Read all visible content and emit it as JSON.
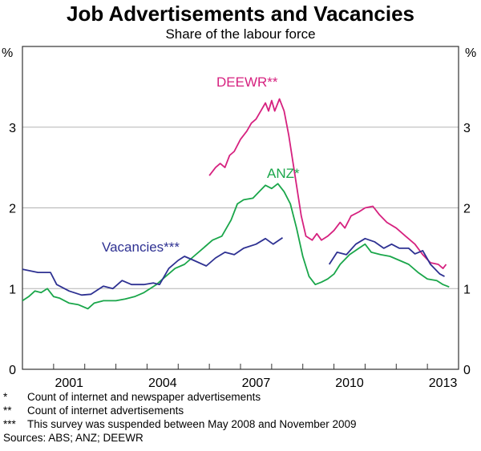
{
  "header": {
    "title": "Job Advertisements and Vacancies",
    "subtitle": "Share of the labour force"
  },
  "chart_data": {
    "type": "line",
    "title": "Job Advertisements and Vacancies",
    "subtitle": "Share of the labour force",
    "ylabel_left": "%",
    "ylabel_right": "%",
    "ylim": [
      0,
      4
    ],
    "xlim": [
      2000,
      2014
    ],
    "yticks": [
      0,
      1,
      2,
      3
    ],
    "xticks": [
      "2001",
      "2004",
      "2007",
      "2010",
      "2013"
    ],
    "grid": true,
    "series": [
      {
        "name": "DEEWR**",
        "color": "#d6217f",
        "segments": [
          [
            [
              2006.0,
              2.4
            ],
            [
              2006.2,
              2.5
            ],
            [
              2006.35,
              2.55
            ],
            [
              2006.5,
              2.5
            ],
            [
              2006.65,
              2.65
            ],
            [
              2006.8,
              2.7
            ],
            [
              2007.0,
              2.85
            ],
            [
              2007.2,
              2.95
            ],
            [
              2007.35,
              3.05
            ],
            [
              2007.5,
              3.1
            ],
            [
              2007.65,
              3.2
            ],
            [
              2007.8,
              3.3
            ],
            [
              2007.9,
              3.2
            ],
            [
              2008.0,
              3.33
            ],
            [
              2008.1,
              3.2
            ],
            [
              2008.25,
              3.35
            ],
            [
              2008.4,
              3.2
            ],
            [
              2008.55,
              2.9
            ],
            [
              2008.75,
              2.4
            ],
            [
              2008.95,
              1.9
            ],
            [
              2009.1,
              1.65
            ],
            [
              2009.3,
              1.6
            ],
            [
              2009.45,
              1.68
            ],
            [
              2009.6,
              1.6
            ],
            [
              2009.8,
              1.65
            ],
            [
              2010.0,
              1.72
            ],
            [
              2010.2,
              1.82
            ],
            [
              2010.35,
              1.75
            ],
            [
              2010.55,
              1.9
            ],
            [
              2010.8,
              1.95
            ],
            [
              2011.0,
              2.0
            ],
            [
              2011.25,
              2.02
            ],
            [
              2011.45,
              1.92
            ],
            [
              2011.7,
              1.82
            ],
            [
              2012.0,
              1.75
            ],
            [
              2012.3,
              1.65
            ],
            [
              2012.6,
              1.55
            ],
            [
              2012.85,
              1.42
            ],
            [
              2013.1,
              1.32
            ],
            [
              2013.35,
              1.3
            ],
            [
              2013.5,
              1.25
            ],
            [
              2013.6,
              1.3
            ]
          ]
        ]
      },
      {
        "name": "ANZ*",
        "color": "#1aa64a",
        "segments": [
          [
            [
              2000.0,
              0.85
            ],
            [
              2000.2,
              0.9
            ],
            [
              2000.4,
              0.97
            ],
            [
              2000.6,
              0.95
            ],
            [
              2000.8,
              1.0
            ],
            [
              2001.0,
              0.9
            ],
            [
              2001.2,
              0.88
            ],
            [
              2001.5,
              0.82
            ],
            [
              2001.8,
              0.8
            ],
            [
              2002.1,
              0.75
            ],
            [
              2002.3,
              0.82
            ],
            [
              2002.6,
              0.85
            ],
            [
              2003.0,
              0.85
            ],
            [
              2003.3,
              0.87
            ],
            [
              2003.6,
              0.9
            ],
            [
              2003.9,
              0.95
            ],
            [
              2004.1,
              1.0
            ],
            [
              2004.3,
              1.05
            ],
            [
              2004.6,
              1.15
            ],
            [
              2004.9,
              1.25
            ],
            [
              2005.2,
              1.3
            ],
            [
              2005.5,
              1.4
            ],
            [
              2005.8,
              1.5
            ],
            [
              2006.1,
              1.6
            ],
            [
              2006.4,
              1.65
            ],
            [
              2006.7,
              1.85
            ],
            [
              2006.9,
              2.05
            ],
            [
              2007.1,
              2.1
            ],
            [
              2007.4,
              2.12
            ],
            [
              2007.6,
              2.2
            ],
            [
              2007.8,
              2.28
            ],
            [
              2008.0,
              2.24
            ],
            [
              2008.2,
              2.3
            ],
            [
              2008.4,
              2.2
            ],
            [
              2008.6,
              2.05
            ],
            [
              2008.8,
              1.75
            ],
            [
              2009.0,
              1.4
            ],
            [
              2009.2,
              1.15
            ],
            [
              2009.4,
              1.05
            ],
            [
              2009.6,
              1.08
            ],
            [
              2009.8,
              1.12
            ],
            [
              2010.0,
              1.18
            ],
            [
              2010.2,
              1.3
            ],
            [
              2010.5,
              1.42
            ],
            [
              2010.8,
              1.5
            ],
            [
              2011.0,
              1.55
            ],
            [
              2011.2,
              1.45
            ],
            [
              2011.5,
              1.42
            ],
            [
              2011.8,
              1.4
            ],
            [
              2012.1,
              1.35
            ],
            [
              2012.4,
              1.3
            ],
            [
              2012.7,
              1.2
            ],
            [
              2013.0,
              1.12
            ],
            [
              2013.3,
              1.1
            ],
            [
              2013.5,
              1.05
            ],
            [
              2013.7,
              1.02
            ]
          ]
        ]
      },
      {
        "name": "Vacancies***",
        "color": "#2e3192",
        "segments": [
          [
            [
              2000.0,
              1.24
            ],
            [
              2000.5,
              1.2
            ],
            [
              2000.9,
              1.2
            ],
            [
              2001.1,
              1.05
            ],
            [
              2001.5,
              0.97
            ],
            [
              2001.9,
              0.92
            ],
            [
              2002.2,
              0.93
            ],
            [
              2002.6,
              1.03
            ],
            [
              2002.9,
              1.0
            ],
            [
              2003.2,
              1.1
            ],
            [
              2003.5,
              1.05
            ],
            [
              2003.9,
              1.05
            ],
            [
              2004.2,
              1.07
            ],
            [
              2004.4,
              1.05
            ],
            [
              2004.7,
              1.25
            ],
            [
              2005.0,
              1.35
            ],
            [
              2005.2,
              1.4
            ],
            [
              2005.5,
              1.35
            ],
            [
              2005.9,
              1.28
            ],
            [
              2006.2,
              1.38
            ],
            [
              2006.5,
              1.45
            ],
            [
              2006.8,
              1.42
            ],
            [
              2007.1,
              1.5
            ],
            [
              2007.5,
              1.55
            ],
            [
              2007.8,
              1.62
            ],
            [
              2008.05,
              1.55
            ],
            [
              2008.35,
              1.63
            ]
          ],
          [
            [
              2009.85,
              1.3
            ],
            [
              2010.1,
              1.45
            ],
            [
              2010.4,
              1.42
            ],
            [
              2010.7,
              1.55
            ],
            [
              2011.0,
              1.62
            ],
            [
              2011.3,
              1.58
            ],
            [
              2011.6,
              1.5
            ],
            [
              2011.85,
              1.55
            ],
            [
              2012.1,
              1.5
            ],
            [
              2012.4,
              1.5
            ],
            [
              2012.6,
              1.43
            ],
            [
              2012.85,
              1.47
            ],
            [
              2013.1,
              1.3
            ],
            [
              2013.4,
              1.18
            ],
            [
              2013.55,
              1.15
            ]
          ]
        ]
      }
    ],
    "annotations": [
      "DEEWR**",
      "ANZ*",
      "Vacancies***"
    ]
  },
  "notes": [
    {
      "mark": "*",
      "text": "Count of internet and newspaper advertisements"
    },
    {
      "mark": "**",
      "text": "Count of internet advertisements"
    },
    {
      "mark": "***",
      "text": "This survey was suspended between May 2008 and November 2009"
    }
  ],
  "sources": "Sources: ABS; ANZ; DEEWR"
}
